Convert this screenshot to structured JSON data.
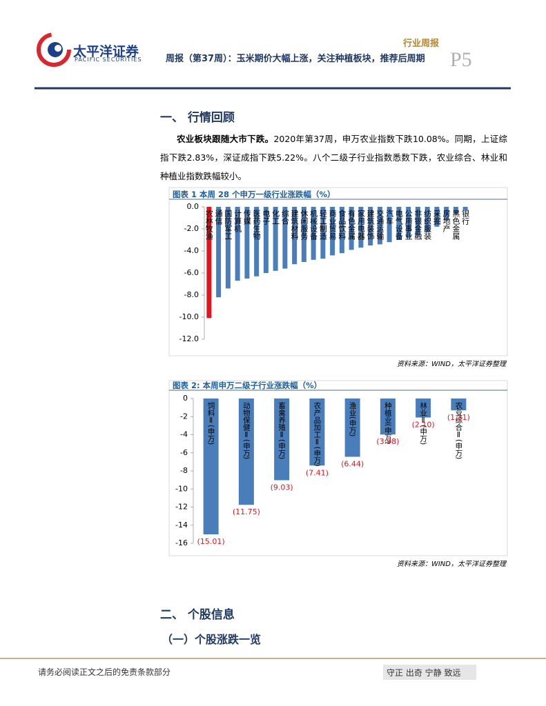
{
  "header": {
    "logo_name": "太平洋证券",
    "logo_english": "PACIFIC SECURITIES",
    "report_type": "行业周报",
    "title": "周报（第37周）：玉米期价大幅上涨，关注种植板块，推荐后周期",
    "page": "P5"
  },
  "section1": {
    "heading": "一、 行情回顾",
    "paragraph_lead": "农业板块跟随大市下跌。",
    "paragraph_body": "2020年第37周，申万农业指数下跌10.08%。同期，上证综指下跌2.83%，深证成指下跌5.22%。八个二级子行业指数悉数下跌，农业综合、林业和种植业指数跌幅较小。"
  },
  "chart_data": [
    {
      "type": "bar",
      "title": "图表 1 本周 28 个申万一级行业涨跌幅（%）",
      "categories": [
        "农林牧渔",
        "通信",
        "国防军工",
        "计算机",
        "传媒",
        "医药生物",
        "电子",
        "化工",
        "综合",
        "建筑材料",
        "休闲服务",
        "机械设备",
        "轻工制造",
        "商业贸易",
        "食品饮料",
        "有色金属",
        "家用电器",
        "建筑装饰",
        "交通运输",
        "汽车",
        "电气设备",
        "公用事业",
        "非银金融",
        "纺织服装",
        "采掘",
        "房地产",
        "黑色金属",
        "银行"
      ],
      "values": [
        -10.08,
        -8.2,
        -7.4,
        -6.7,
        -6.5,
        -6.3,
        -6.0,
        -5.8,
        -5.6,
        -5.2,
        -5.0,
        -4.8,
        -4.7,
        -4.4,
        -4.2,
        -3.9,
        -3.7,
        -3.5,
        -3.4,
        -3.2,
        -3.0,
        -2.8,
        -2.6,
        -2.3,
        -1.8,
        -1.2,
        -0.6,
        -0.3
      ],
      "colors": [
        "#e3141b",
        "#4a7ebb",
        "#4a7ebb",
        "#4a7ebb",
        "#4a7ebb",
        "#4a7ebb",
        "#4a7ebb",
        "#4a7ebb",
        "#4a7ebb",
        "#4a7ebb",
        "#4a7ebb",
        "#4a7ebb",
        "#4a7ebb",
        "#4a7ebb",
        "#4a7ebb",
        "#4a7ebb",
        "#4a7ebb",
        "#4a7ebb",
        "#4a7ebb",
        "#4a7ebb",
        "#4a7ebb",
        "#4a7ebb",
        "#4a7ebb",
        "#4a7ebb",
        "#4a7ebb",
        "#4a7ebb",
        "#4a7ebb",
        "#4a7ebb"
      ],
      "ylim": [
        -12,
        0
      ],
      "yticks": [
        {
          "value": 0,
          "label": "0.0"
        },
        {
          "value": -2,
          "label": "-2.0"
        },
        {
          "value": -4,
          "label": "-4.0"
        },
        {
          "value": -6,
          "label": "-6.0"
        },
        {
          "value": -8,
          "label": "-8.0"
        },
        {
          "value": -10,
          "label": "-10.0"
        },
        {
          "value": -12,
          "label": "-12.0"
        }
      ],
      "source": "资料来源：WIND，太平洋证券整理"
    },
    {
      "type": "bar",
      "title": "图表 2: 本周申万二级子行业涨跌幅（%）",
      "categories": [
        "饲料Ⅱ(申万)",
        "动物保健Ⅱ(申万)",
        "畜禽养殖Ⅱ(申万)",
        "农产品加工Ⅱ(申万)",
        "渔业(申万)",
        "种植业(申万)",
        "林业Ⅱ(申万)",
        "农业综合Ⅱ(申万)"
      ],
      "values": [
        -15.01,
        -11.75,
        -9.03,
        -7.41,
        -6.44,
        -3.98,
        -2.1,
        -1.31
      ],
      "value_labels": [
        "(15.01)",
        "(11.75)",
        "(9.03)",
        "(7.41)",
        "(6.44)",
        "(3.98)",
        "(2.10)",
        "(1.31)"
      ],
      "colors": [
        "#4a7ebb",
        "#4a7ebb",
        "#4a7ebb",
        "#4a7ebb",
        "#4a7ebb",
        "#4a7ebb",
        "#4a7ebb",
        "#4a7ebb"
      ],
      "ylim": [
        -16,
        0
      ],
      "yticks": [
        0,
        -2,
        -4,
        -6,
        -8,
        -10,
        -12,
        -14,
        -16
      ],
      "source": "资料来源：WIND，太平洋证券整理"
    }
  ],
  "section2": {
    "heading": "二、 个股信息",
    "subheading": "（一）个股涨跌一览"
  },
  "footer": {
    "disclaimer": "请务必阅读正文之后的免责条款部分",
    "motto": "守正 出奇 宁静 致远"
  }
}
